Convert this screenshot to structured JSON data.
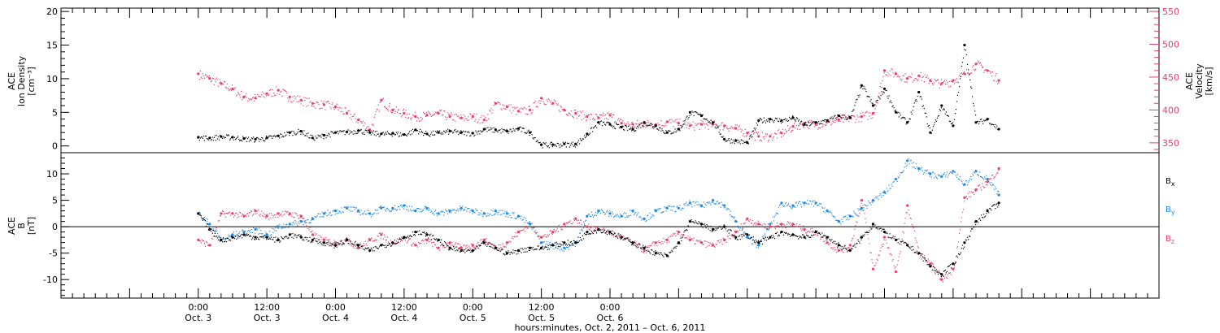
{
  "chart_data": [
    {
      "type": "scatter",
      "panel": "top",
      "ylabel_left": [
        "ACE",
        "Ion Density",
        "[cm⁻³]"
      ],
      "ylabel_right": [
        "ACE",
        "Velocity",
        "[km/s]"
      ],
      "ylim_left": [
        -1,
        20.5
      ],
      "yticks_left": [
        0,
        5,
        10,
        15,
        20
      ],
      "ylim_right": [
        335,
        555
      ],
      "yticks_right": [
        350,
        400,
        450,
        500,
        550
      ],
      "grid": false,
      "series": [
        {
          "name": "Ion Density",
          "axis": "left",
          "color": "#000000",
          "x_hours": [
            0,
            2,
            4,
            6,
            8,
            10,
            12,
            14,
            16,
            18,
            20,
            22,
            24,
            26,
            28,
            30,
            32,
            34,
            36,
            38,
            40,
            42,
            44,
            46,
            48,
            50,
            52,
            54,
            56,
            58,
            60,
            62,
            64,
            66,
            68,
            70,
            72,
            74,
            76,
            78,
            80,
            82,
            84,
            86,
            88,
            90,
            92,
            94,
            96,
            98,
            100,
            102,
            104,
            106,
            108,
            110,
            112,
            114,
            116,
            118,
            120,
            122,
            124,
            126,
            128,
            130,
            132,
            134,
            136,
            138,
            140
          ],
          "values": [
            1.3,
            1.2,
            1.4,
            1.3,
            1.1,
            1.0,
            1.2,
            1.5,
            2.0,
            2.2,
            1.2,
            1.6,
            2.0,
            2.1,
            2.3,
            2.0,
            1.8,
            1.9,
            1.7,
            2.4,
            1.8,
            2.0,
            2.2,
            2.0,
            1.9,
            2.5,
            2.4,
            2.2,
            2.6,
            2.0,
            0.2,
            0.2,
            0.3,
            0.3,
            1.8,
            3.5,
            3.2,
            2.8,
            2.5,
            3.5,
            3.0,
            2.0,
            2.5,
            5.0,
            4.5,
            3.5,
            1.0,
            0.8,
            0.5,
            3.8,
            4.0,
            3.8,
            4.2,
            3.2,
            3.5,
            3.8,
            4.5,
            4.2,
            9.0,
            6.0,
            8.5,
            5.0,
            3.5,
            8.0,
            2.0,
            6.0,
            3.0,
            15.0,
            3.5,
            4.0,
            2.5
          ]
        },
        {
          "name": "Velocity",
          "axis": "right",
          "color": "#e8406a",
          "x_hours": [
            0,
            2,
            4,
            6,
            8,
            10,
            12,
            14,
            16,
            18,
            20,
            22,
            24,
            26,
            28,
            30,
            32,
            34,
            36,
            38,
            40,
            42,
            44,
            46,
            48,
            50,
            52,
            54,
            56,
            58,
            60,
            62,
            64,
            66,
            68,
            70,
            72,
            74,
            76,
            78,
            80,
            82,
            84,
            86,
            88,
            90,
            92,
            94,
            96,
            98,
            100,
            102,
            104,
            106,
            108,
            110,
            112,
            114,
            116,
            118,
            120,
            122,
            124,
            126,
            128,
            130,
            132,
            134,
            136,
            138,
            140
          ],
          "values": [
            455,
            448,
            440,
            432,
            420,
            418,
            425,
            430,
            420,
            415,
            410,
            408,
            405,
            395,
            385,
            370,
            415,
            400,
            395,
            390,
            392,
            395,
            390,
            388,
            390,
            385,
            410,
            405,
            398,
            400,
            418,
            410,
            400,
            395,
            390,
            388,
            392,
            380,
            378,
            380,
            378,
            382,
            380,
            376,
            378,
            378,
            376,
            372,
            365,
            360,
            360,
            365,
            375,
            380,
            378,
            382,
            385,
            388,
            390,
            395,
            460,
            455,
            448,
            452,
            445,
            440,
            445,
            455,
            470,
            460,
            445
          ]
        }
      ]
    },
    {
      "type": "scatter",
      "panel": "bottom",
      "ylabel_left": [
        "ACE",
        "B",
        "[nT]"
      ],
      "ylim": [
        -13.5,
        14
      ],
      "yticks": [
        -10,
        -5,
        0,
        5,
        10
      ],
      "zero_line": true,
      "grid": false,
      "legend_position": "right",
      "series": [
        {
          "name": "B",
          "subscript": "x",
          "color": "#000000",
          "x_hours": [
            0,
            2,
            4,
            6,
            8,
            10,
            12,
            14,
            16,
            18,
            20,
            22,
            24,
            26,
            28,
            30,
            32,
            34,
            36,
            38,
            40,
            42,
            44,
            46,
            48,
            50,
            52,
            54,
            56,
            58,
            60,
            62,
            64,
            66,
            68,
            70,
            72,
            74,
            76,
            78,
            80,
            82,
            84,
            86,
            88,
            90,
            92,
            94,
            96,
            98,
            100,
            102,
            104,
            106,
            108,
            110,
            112,
            114,
            116,
            118,
            120,
            122,
            124,
            126,
            128,
            130,
            132,
            134,
            136,
            138,
            140
          ],
          "values": [
            2.5,
            -0.5,
            -2.5,
            -2.0,
            -1.5,
            -2.0,
            -2.0,
            -2.5,
            -1.5,
            -2.0,
            -2.5,
            -3.0,
            -3.5,
            -2.5,
            -3.5,
            -4.5,
            -3.5,
            -3.0,
            -2.0,
            -1.0,
            -1.5,
            -2.5,
            -4.0,
            -4.5,
            -4.5,
            -3.0,
            -4.0,
            -5.0,
            -4.5,
            -4.0,
            -4.0,
            -3.5,
            -3.0,
            -3.0,
            -1.0,
            -0.5,
            -1.0,
            -2.0,
            -3.0,
            -4.0,
            -5.0,
            -5.5,
            -3.0,
            1.0,
            0.5,
            -0.5,
            0.0,
            -2.0,
            -1.5,
            -3.0,
            -2.0,
            -1.0,
            -1.5,
            -2.0,
            -1.0,
            -2.0,
            -3.5,
            -4.5,
            -2.0,
            0.5,
            -1.0,
            -2.5,
            -3.5,
            -5.0,
            -7.5,
            -9.0,
            -7.0,
            -3.0,
            1.0,
            3.0,
            4.5
          ]
        },
        {
          "name": "B",
          "subscript": "y",
          "color": "#1e88e5",
          "x_hours": [
            0,
            2,
            4,
            6,
            8,
            10,
            12,
            14,
            16,
            18,
            20,
            22,
            24,
            26,
            28,
            30,
            32,
            34,
            36,
            38,
            40,
            42,
            44,
            46,
            48,
            50,
            52,
            54,
            56,
            58,
            60,
            62,
            64,
            66,
            68,
            70,
            72,
            74,
            76,
            78,
            80,
            82,
            84,
            86,
            88,
            90,
            92,
            94,
            96,
            98,
            100,
            102,
            104,
            106,
            108,
            110,
            112,
            114,
            116,
            118,
            120,
            122,
            124,
            126,
            128,
            130,
            132,
            134,
            136,
            138,
            140
          ],
          "values": [
            2.5,
            0.5,
            -2.5,
            -1.5,
            -1.0,
            -0.5,
            -1.5,
            0.0,
            0.5,
            1.0,
            1.5,
            2.5,
            3.0,
            3.5,
            3.0,
            2.5,
            3.5,
            3.5,
            4.0,
            3.0,
            3.5,
            2.5,
            3.0,
            3.5,
            3.0,
            2.5,
            3.0,
            2.5,
            2.0,
            0.5,
            -3.0,
            -3.5,
            -4.0,
            -3.0,
            2.0,
            3.0,
            2.5,
            2.0,
            3.0,
            1.5,
            3.0,
            3.5,
            3.5,
            4.5,
            4.0,
            5.0,
            4.0,
            1.0,
            -2.0,
            -3.5,
            0.5,
            4.5,
            4.0,
            4.5,
            4.5,
            3.0,
            1.0,
            2.0,
            3.5,
            5.0,
            6.5,
            9.0,
            12.5,
            11.0,
            10.0,
            9.5,
            10.5,
            8.0,
            10.5,
            9.0,
            6.0
          ]
        },
        {
          "name": "B",
          "subscript": "z",
          "color": "#e8406a",
          "x_hours": [
            0,
            2,
            4,
            6,
            8,
            10,
            12,
            14,
            16,
            18,
            20,
            22,
            24,
            26,
            28,
            30,
            32,
            34,
            36,
            38,
            40,
            42,
            44,
            46,
            48,
            50,
            52,
            54,
            56,
            58,
            60,
            62,
            64,
            66,
            68,
            70,
            72,
            74,
            76,
            78,
            80,
            82,
            84,
            86,
            88,
            90,
            92,
            94,
            96,
            98,
            100,
            102,
            104,
            106,
            108,
            110,
            112,
            114,
            116,
            118,
            120,
            122,
            124,
            126,
            128,
            130,
            132,
            134,
            136,
            138,
            140
          ],
          "values": [
            -2.5,
            -3.5,
            2.5,
            2.5,
            2.0,
            3.0,
            2.0,
            2.5,
            2.5,
            2.0,
            -1.5,
            -2.5,
            -3.0,
            -2.5,
            -4.0,
            -2.5,
            -1.5,
            -3.0,
            -2.0,
            -3.5,
            -2.5,
            -4.0,
            -3.0,
            -4.0,
            -3.5,
            -2.5,
            -4.0,
            -3.0,
            -1.0,
            0.5,
            -2.0,
            -1.0,
            0.5,
            1.5,
            0.0,
            -0.5,
            -1.0,
            -2.0,
            -3.0,
            -4.5,
            -3.0,
            -2.5,
            -1.0,
            -2.5,
            -3.0,
            -3.5,
            -2.5,
            -1.0,
            1.5,
            0.5,
            0.0,
            0.5,
            0.5,
            -0.5,
            -1.0,
            -3.0,
            -4.5,
            -3.5,
            5.0,
            -8.0,
            -2.0,
            -8.5,
            4.0,
            -5.0,
            -7.0,
            -10.0,
            -8.0,
            5.5,
            7.0,
            8.5,
            11.0
          ]
        }
      ]
    }
  ],
  "x_axis": {
    "domain_hours": [
      -24,
      168
    ],
    "ticks": [
      {
        "hour": 0,
        "time": "0:00",
        "date": "Oct. 3"
      },
      {
        "hour": 12,
        "time": "12:00",
        "date": "Oct. 3"
      },
      {
        "hour": 24,
        "time": "0:00",
        "date": "Oct. 4"
      },
      {
        "hour": 36,
        "time": "12:00",
        "date": "Oct. 4"
      },
      {
        "hour": 48,
        "time": "0:00",
        "date": "Oct. 5"
      },
      {
        "hour": 60,
        "time": "12:00",
        "date": "Oct. 5"
      },
      {
        "hour": 72,
        "time": "0:00",
        "date": "Oct. 6"
      }
    ],
    "label": "hours:minutes, Oct.  2, 2011 – Oct.  6, 2011"
  }
}
